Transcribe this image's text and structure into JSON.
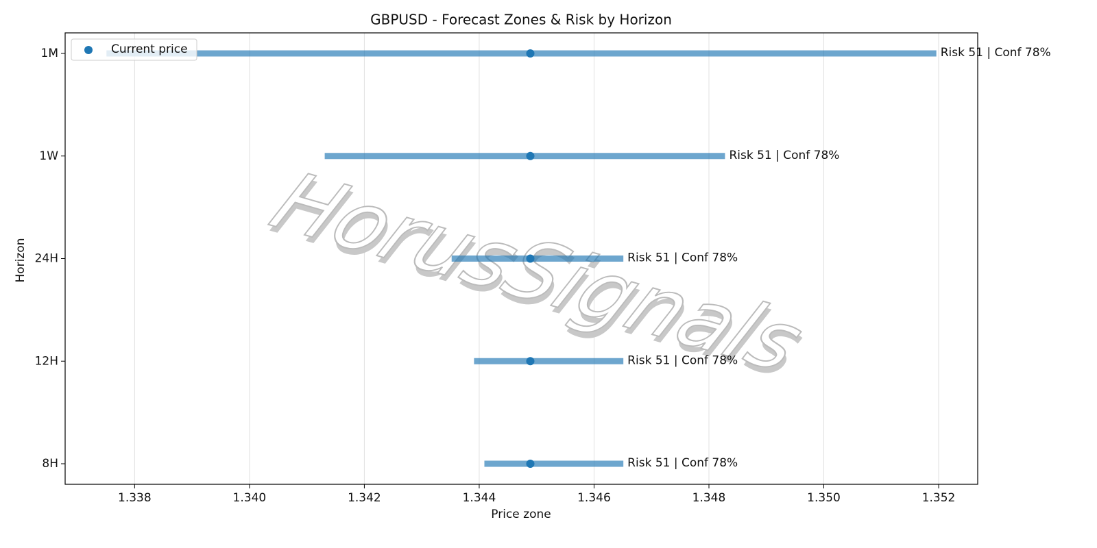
{
  "chart_data": {
    "type": "range",
    "title": "GBPUSD - Forecast Zones & Risk by Horizon",
    "xlabel": "Price zone",
    "ylabel": "Horizon",
    "watermark": "HorusSignals",
    "categories": [
      "8H",
      "12H",
      "24H",
      "1W",
      "1M"
    ],
    "zones": {
      "color": "#1f77b4",
      "low": [
        1.34409,
        1.34391,
        1.34352,
        1.34131,
        1.33751
      ],
      "high": [
        1.34651,
        1.34651,
        1.34651,
        1.34828,
        1.35196
      ]
    },
    "current": {
      "name": "Current price",
      "color": "#1f77b4",
      "values": [
        1.34489,
        1.34489,
        1.34489,
        1.34489,
        1.34489
      ]
    },
    "annotations": [
      "Risk 51 | Conf 78%",
      "Risk 51 | Conf 78%",
      "Risk 51 | Conf 78%",
      "Risk 51 | Conf 78%",
      "Risk 51 | Conf 78%"
    ],
    "xlim": [
      1.33679,
      1.35268
    ],
    "xticks": [
      1.338,
      {
        "value": 1.34,
        "label": "1.340"
      },
      1.342,
      1.344,
      1.346,
      1.348,
      {
        "value": 1.35,
        "label": "1.350"
      },
      1.352
    ],
    "grid": true,
    "legend": "upper left"
  }
}
